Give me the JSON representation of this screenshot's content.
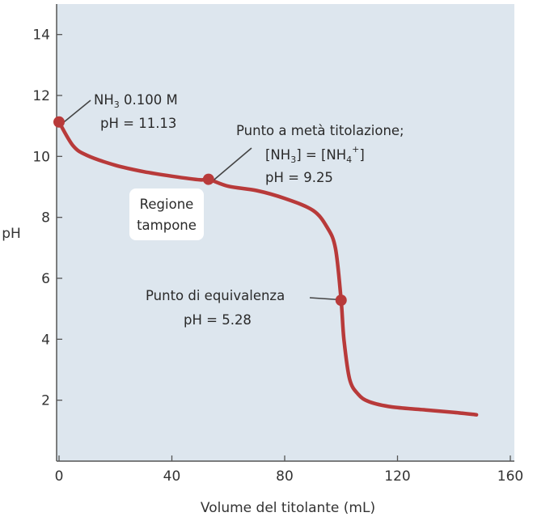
{
  "chart_data": {
    "type": "line",
    "xlabel": "Volume del titolante (mL)",
    "ylabel": "pH",
    "xlim": [
      0,
      160
    ],
    "ylim": [
      0,
      15
    ],
    "x_ticks": [
      "0",
      "40",
      "80",
      "120",
      "160"
    ],
    "y_ticks": [
      "2",
      "4",
      "6",
      "8",
      "10",
      "12",
      "14"
    ],
    "grid": false,
    "colors": {
      "plot_bg": "#dde6ee",
      "curve": "#b83a3a",
      "marker": "#b83a3a",
      "axis": "#555555"
    },
    "series": [
      {
        "points": [
          [
            0,
            11.13
          ],
          [
            5,
            10.35
          ],
          [
            10,
            10.03
          ],
          [
            20,
            9.71
          ],
          [
            30,
            9.5
          ],
          [
            40,
            9.35
          ],
          [
            50,
            9.23
          ],
          [
            53,
            9.25
          ],
          [
            60,
            9.02
          ],
          [
            70,
            8.88
          ],
          [
            80,
            8.62
          ],
          [
            90,
            8.23
          ],
          [
            95,
            7.68
          ],
          [
            98,
            6.98
          ],
          [
            100,
            5.28
          ],
          [
            101,
            4.0
          ],
          [
            103,
            2.7
          ],
          [
            106,
            2.2
          ],
          [
            110,
            1.95
          ],
          [
            118,
            1.78
          ],
          [
            130,
            1.68
          ],
          [
            140,
            1.6
          ],
          [
            148,
            1.52
          ]
        ]
      }
    ],
    "markers": [
      {
        "name": "start",
        "x": 0,
        "y": 11.13
      },
      {
        "name": "half-equivalence",
        "x": 53,
        "y": 9.25
      },
      {
        "name": "equivalence",
        "x": 100,
        "y": 5.28
      }
    ],
    "annotations": {
      "start": {
        "line1_main": "NH",
        "line1_sub": "3",
        "line1_rest": " 0.100 M",
        "line2": "pH = 11.13"
      },
      "half": {
        "line1": "Punto a metà titolazione;",
        "line2_a": "[NH",
        "line2_a_sub": "3",
        "line2_b": "] = [NH",
        "line2_b_sub": "4",
        "line2_b_sup": "+",
        "line2_c": "]",
        "line3": "pH = 9.25"
      },
      "buffer": {
        "line1": "Regione",
        "line2": "tampone"
      },
      "equivalence": {
        "line1": "Punto di equivalenza",
        "line2": "pH = 5.28"
      }
    }
  }
}
